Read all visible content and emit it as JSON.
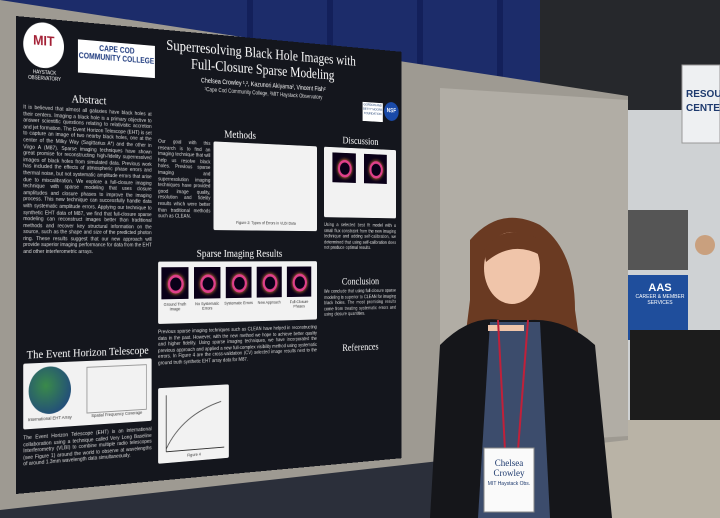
{
  "poster": {
    "logos": {
      "mit": "MIT",
      "haystack": "HAYSTACK OBSERVATORY",
      "cape_cod": "CAPE COD COMMUNITY COLLEGE",
      "moore": "GORDON AND BETTY MOORE FOUNDATION",
      "nsf": "NSF"
    },
    "title": "Superresolving Black Hole Images with Full-Closure Sparse Modeling",
    "authors": "Chelsea Crowley ¹,², Kazunori Akiyama², Vincent Fish²",
    "affiliations": "¹Cape Cod Community College, ²MIT Haystack Observatory",
    "abstract": {
      "heading": "Abstract",
      "text": "It is believed that almost all galaxies have black holes at their centers. Imaging a black hole is a primary objective to answer scientific questions relating to relativistic accretion and jet formation. The Event Horizon Telescope (EHT) is set to capture an image of two nearby black holes, one at the center of the Milky Way (Sagittarius A*) and the other in Virgo A (M87). Sparse imaging techniques have shown great promise for reconstructing high-fidelity superresolved images of black holes from simulated data. Previous work has included the effects of atmospheric phase errors and thermal noise, but not systematic amplitude errors that arise due to miscalibration. We explore a full-closure imaging technique with sparse modeling that uses closure amplitudes and closure phases to improve the imaging process. This new technique can successfully handle data with systematic amplitude errors. Applying our technique to synthetic EHT data of M87, we find that full-closure sparse modeling can reconstruct images better than traditional methods and recover key structural information on the source, such as the shape and size of the predicted photon ring. These results suggest that our new approach will provide superior imaging performance for data from the EHT and other interferometric arrays."
    },
    "methods": {
      "heading": "Methods",
      "text": "Our goal with this research is to find an imaging technique that will help us resolve black holes. Previous sparse imaging and superresolution imaging techniques have provided good image quality, resolution and fidelity results which were better than traditional methods such as CLEAN.",
      "figure": "Figure 2: Types of Errors in VLBI Data"
    },
    "results": {
      "heading": "Sparse Imaging Results",
      "panels": [
        "Ground Truth Image",
        "No Systematic Errors",
        "Systematic Errors",
        "New Approach",
        "Full-Closure Phases"
      ],
      "text": "Previous sparse imaging techniques such as CLEAN have helped in reconstructing data in the past. However, with the new method we hope to achieve better quality and higher fidelity. Using sparse imaging techniques, we have incorporated the previous approach and applied a new full-complex visibility method using systematic errors. In Figure 4 are the cross-validation (CV) selected image results next to the ground truth synthetic EHT array data for M87.",
      "figure": "Figure 4"
    },
    "eht": {
      "heading": "The Event Horizon Telescope",
      "fig1": "International EHT Array",
      "fig3": "Spatial Frequency Coverage",
      "text": "The Event Horizon Telescope (EHT) is an international collaboration using a technique called Very Long Baseline Interferometry (VLBI) to combine multiple radio telescopes (see Figure 1) around the world to observe at wavelengths of around 1.3mm wavelength data simultaneously."
    },
    "discussion": {
      "heading": "Discussion",
      "text": "Using a selected best fit model with a small flux constraint from the new imaging technique and adding self-calibration, we determined that using self-calibration does not produce optimal results."
    },
    "conclusion": {
      "heading": "Conclusion",
      "text": "We conclude that using full-closure sparse modeling is superior to CLEAN for imaging black holes. The most promising results come from treating systematic errors and using closure quantities."
    },
    "references": {
      "heading": "References"
    }
  },
  "badge": {
    "name": "Chelsea Crowley",
    "affiliation": "MIT Haystack Obs."
  },
  "background": {
    "sign": [
      "RESOU",
      "CENTE"
    ],
    "booth": [
      "AAS",
      "CAREER & MEMBER SERVICES"
    ]
  }
}
